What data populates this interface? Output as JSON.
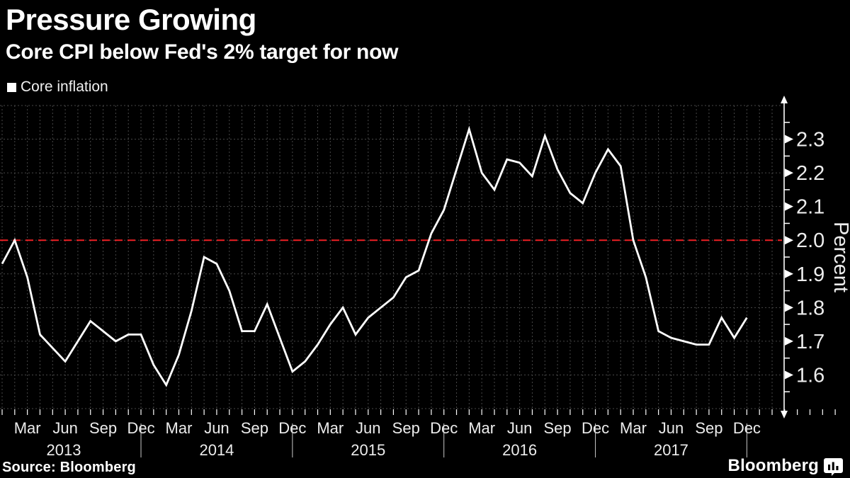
{
  "header": {
    "title": "Pressure Growing",
    "subtitle": "Core CPI below Fed's 2% target for now"
  },
  "legend": {
    "label": "Core inflation",
    "marker_color": "#ffffff"
  },
  "source": {
    "text": "Source: Bloomberg"
  },
  "branding": {
    "text": "Bloomberg",
    "icon": "bloomberg-terminal-icon"
  },
  "colors": {
    "background": "#000000",
    "series_line": "#ffffff",
    "target_line": "#ed2024",
    "grid": "#474747",
    "axis": "#ffffff",
    "tick_text": "#ececec",
    "year_divider": "#c9c9c9"
  },
  "chart_data": {
    "type": "line",
    "title": "Pressure Growing",
    "subtitle": "Core CPI below Fed's 2% target for now",
    "ylabel": "Percent",
    "ylim": [
      1.5,
      2.4
    ],
    "yticks": [
      "1.6",
      "1.7",
      "1.8",
      "1.9",
      "2.0",
      "2.1",
      "2.2",
      "2.3"
    ],
    "y_minor_tick_step": 0.05,
    "grid": true,
    "legend_position": "top-left",
    "target_line": {
      "value": 2.0,
      "meaning": "Fed 2% target",
      "style": "dashed"
    },
    "x_start": "2013-01",
    "x_end": "2017-12",
    "frequency": "monthly",
    "x_axis": {
      "quarter_month_labels": [
        "Mar",
        "Jun",
        "Sep",
        "Dec"
      ],
      "years": [
        "2013",
        "2014",
        "2015",
        "2016",
        "2017"
      ]
    },
    "series": [
      {
        "name": "Core inflation",
        "color": "#ffffff",
        "values": [
          1.93,
          2.0,
          1.89,
          1.72,
          1.68,
          1.64,
          1.7,
          1.76,
          1.73,
          1.7,
          1.72,
          1.72,
          1.63,
          1.57,
          1.66,
          1.79,
          1.95,
          1.93,
          1.85,
          1.73,
          1.73,
          1.81,
          1.71,
          1.61,
          1.64,
          1.69,
          1.75,
          1.8,
          1.72,
          1.77,
          1.8,
          1.83,
          1.89,
          1.91,
          2.02,
          2.09,
          2.21,
          2.33,
          2.2,
          2.15,
          2.24,
          2.23,
          2.19,
          2.31,
          2.21,
          2.14,
          2.11,
          2.2,
          2.27,
          2.22,
          2.0,
          1.89,
          1.73,
          1.71,
          1.7,
          1.69,
          1.69,
          1.77,
          1.71,
          1.77
        ]
      }
    ]
  }
}
